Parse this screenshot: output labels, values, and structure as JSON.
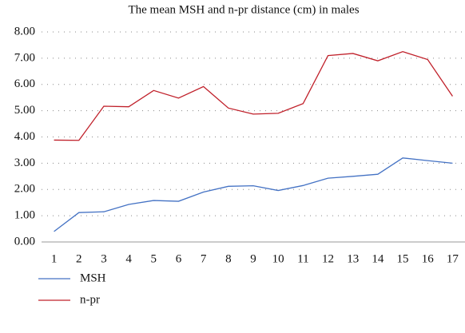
{
  "chart_data": {
    "type": "line",
    "title": "The mean MSH and n-pr distance (cm) in males",
    "categories": [
      "1",
      "2",
      "3",
      "4",
      "5",
      "6",
      "7",
      "8",
      "9",
      "10",
      "11",
      "12",
      "13",
      "14",
      "15",
      "16",
      "17"
    ],
    "series": [
      {
        "name": "MSH",
        "color": "#4472c4",
        "values": [
          0.4,
          1.12,
          1.15,
          1.43,
          1.58,
          1.55,
          1.9,
          2.12,
          2.14,
          1.96,
          2.15,
          2.43,
          2.5,
          2.58,
          3.2,
          3.1,
          3.0
        ]
      },
      {
        "name": "n-pr",
        "color": "#c0202a",
        "values": [
          3.88,
          3.87,
          5.17,
          5.15,
          5.77,
          5.48,
          5.92,
          5.1,
          4.87,
          4.9,
          5.27,
          7.1,
          7.18,
          6.9,
          7.25,
          6.95,
          5.55
        ]
      }
    ],
    "ylim": [
      0,
      8
    ],
    "yticks": [
      {
        "value": 0,
        "label": "0.00"
      },
      {
        "value": 1,
        "label": "1.00"
      },
      {
        "value": 2,
        "label": "2.00"
      },
      {
        "value": 3,
        "label": "3.00"
      },
      {
        "value": 4,
        "label": "4.00"
      },
      {
        "value": 5,
        "label": "5.00"
      },
      {
        "value": 6,
        "label": "6.00"
      },
      {
        "value": 7,
        "label": "7.00"
      },
      {
        "value": 8,
        "label": "8.00"
      }
    ],
    "grid": true
  }
}
